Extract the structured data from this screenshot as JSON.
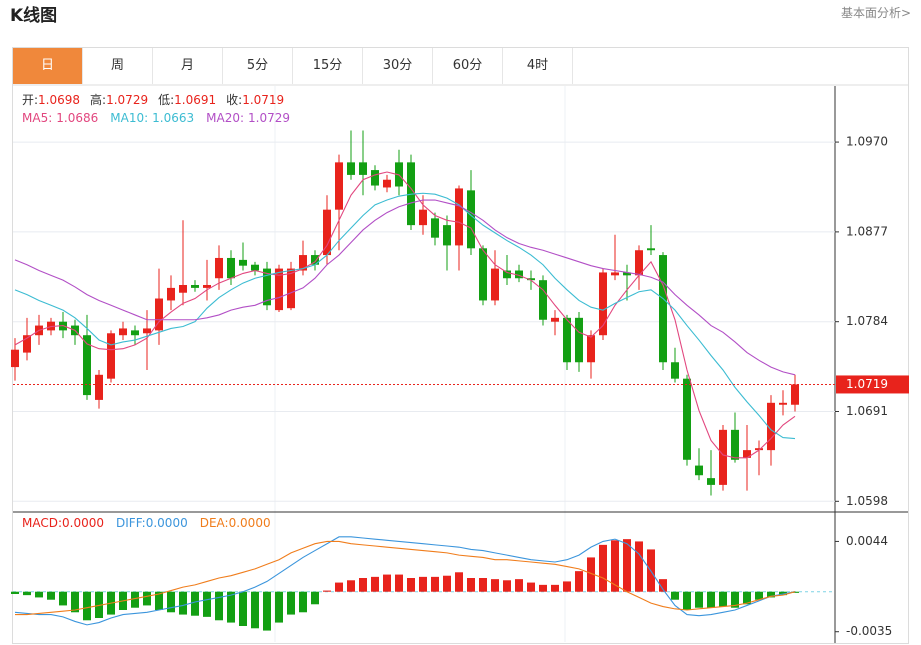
{
  "header": {
    "title": "K线图",
    "link": "基本面分析>"
  },
  "tabs": {
    "items": [
      "日",
      "周",
      "月",
      "5分",
      "15分",
      "30分",
      "60分",
      "4时"
    ],
    "active": 0
  },
  "chart_data": [
    {
      "type": "candlestick",
      "up_color": "#e8231c",
      "down_color": "#139f13",
      "ohlc_labels": {
        "open": "开:",
        "high": "高:",
        "low": "低:",
        "close": "收:"
      },
      "open": [
        1.0737,
        1.0752,
        1.077,
        1.0775,
        1.0784,
        1.078,
        1.077,
        1.0703,
        1.0725,
        1.077,
        1.0775,
        1.0772,
        1.0775,
        1.0806,
        1.0814,
        1.0822,
        1.0819,
        1.0829,
        1.085,
        1.0848,
        1.0843,
        1.0839,
        1.0796,
        1.0798,
        1.0837,
        1.0853,
        1.0853,
        1.09,
        1.0949,
        1.0949,
        1.0941,
        1.0923,
        1.0949,
        1.0949,
        1.0884,
        1.0891,
        1.0884,
        1.0863,
        1.092,
        1.086,
        1.0806,
        1.0837,
        1.0837,
        1.0829,
        1.0827,
        1.0784,
        1.0788,
        1.0788,
        1.0742,
        1.077,
        1.0832,
        1.0835,
        1.0832,
        1.086,
        1.0853,
        1.0742,
        1.0725,
        1.0635,
        1.0622,
        1.0615,
        1.0672,
        1.0643,
        1.0651,
        1.0651,
        1.0698,
        1.0698
      ],
      "high": [
        1.0767,
        1.0788,
        1.0791,
        1.0788,
        1.0794,
        1.0786,
        1.0791,
        1.0734,
        1.0775,
        1.0784,
        1.078,
        1.0796,
        1.0839,
        1.0832,
        1.0889,
        1.0827,
        1.0848,
        1.0863,
        1.0858,
        1.0866,
        1.0846,
        1.0846,
        1.0843,
        1.0846,
        1.0868,
        1.0858,
        1.0915,
        1.0957,
        1.0982,
        1.0982,
        1.0946,
        1.0936,
        1.0962,
        1.0957,
        1.0915,
        1.0897,
        1.0894,
        1.0925,
        1.0941,
        1.0863,
        1.0858,
        1.0853,
        1.0843,
        1.0837,
        1.0832,
        1.0796,
        1.0791,
        1.0794,
        1.0775,
        1.0839,
        1.0874,
        1.0843,
        1.0863,
        1.0884,
        1.0856,
        1.0757,
        1.0729,
        1.0653,
        1.0651,
        1.0677,
        1.069,
        1.0677,
        1.0661,
        1.0708,
        1.0713,
        1.0729
      ],
      "low": [
        1.0723,
        1.0744,
        1.076,
        1.077,
        1.0767,
        1.076,
        1.0703,
        1.0694,
        1.0721,
        1.0765,
        1.076,
        1.0734,
        1.076,
        1.0796,
        1.0801,
        1.0815,
        1.0806,
        1.0817,
        1.0822,
        1.0837,
        1.0832,
        1.0796,
        1.0794,
        1.0796,
        1.0832,
        1.0837,
        1.0843,
        1.0858,
        1.0931,
        1.0915,
        1.092,
        1.0918,
        1.0915,
        1.0879,
        1.0874,
        1.0863,
        1.0837,
        1.0837,
        1.0853,
        1.0801,
        1.0801,
        1.0822,
        1.0825,
        1.0817,
        1.078,
        1.077,
        1.0734,
        1.0732,
        1.0725,
        1.0765,
        1.0827,
        1.0806,
        1.0817,
        1.0853,
        1.0734,
        1.0721,
        1.0635,
        1.062,
        1.0604,
        1.0609,
        1.0638,
        1.0609,
        1.0625,
        1.0635,
        1.0687,
        1.0691
      ],
      "close": [
        1.0755,
        1.077,
        1.078,
        1.0784,
        1.0775,
        1.077,
        1.0708,
        1.0729,
        1.0772,
        1.0777,
        1.077,
        1.0777,
        1.0808,
        1.0819,
        1.0822,
        1.0819,
        1.0822,
        1.085,
        1.0829,
        1.0842,
        1.0837,
        1.0801,
        1.0839,
        1.0839,
        1.0853,
        1.0843,
        1.09,
        1.0949,
        1.0936,
        1.0936,
        1.0925,
        1.0931,
        1.0924,
        1.0884,
        1.09,
        1.0871,
        1.0863,
        1.0922,
        1.086,
        1.0806,
        1.0839,
        1.0829,
        1.0829,
        1.0827,
        1.0786,
        1.0788,
        1.0742,
        1.0742,
        1.077,
        1.0835,
        1.0835,
        1.0832,
        1.0858,
        1.0858,
        1.0742,
        1.0725,
        1.0641,
        1.0625,
        1.0615,
        1.0672,
        1.0641,
        1.0651,
        1.0653,
        1.07,
        1.07,
        1.0719
      ],
      "series": [
        {
          "name": "MA5:",
          "color": "#e2477f",
          "values": [
            1.076,
            1.0767,
            1.0775,
            1.0779,
            1.078,
            1.0775,
            1.0761,
            1.0756,
            1.0755,
            1.0756,
            1.076,
            1.0767,
            1.0784,
            1.0794,
            1.0803,
            1.0808,
            1.0817,
            1.0824,
            1.0829,
            1.0834,
            1.0837,
            1.0834,
            1.0832,
            1.0834,
            1.0839,
            1.0846,
            1.0863,
            1.0889,
            1.0915,
            1.0931,
            1.0936,
            1.0939,
            1.0936,
            1.0922,
            1.0905,
            1.0894,
            1.0889,
            1.0887,
            1.0881,
            1.0858,
            1.0843,
            1.0835,
            1.0832,
            1.0827,
            1.0817,
            1.0801,
            1.0786,
            1.0773,
            1.0768,
            1.078,
            1.0801,
            1.0817,
            1.0832,
            1.0846,
            1.0822,
            1.0786,
            1.0734,
            1.0692,
            1.0661,
            1.0646,
            1.0643,
            1.0643,
            1.0651,
            1.0663,
            1.0677,
            1.0686
          ]
        },
        {
          "name": "MA10:",
          "color": "#3cbcd2",
          "values": [
            1.0817,
            1.0812,
            1.0806,
            1.0801,
            1.0796,
            1.0788,
            1.0777,
            1.0765,
            1.076,
            1.0763,
            1.0765,
            1.0769,
            1.0773,
            1.0777,
            1.0779,
            1.0784,
            1.0798,
            1.0809,
            1.0817,
            1.0824,
            1.0829,
            1.0832,
            1.0835,
            1.0837,
            1.0839,
            1.0843,
            1.0853,
            1.0868,
            1.0881,
            1.0894,
            1.0905,
            1.091,
            1.0914,
            1.0916,
            1.0917,
            1.0916,
            1.0912,
            1.0905,
            1.0894,
            1.0884,
            1.0876,
            1.0868,
            1.0861,
            1.0853,
            1.0843,
            1.0829,
            1.0817,
            1.0806,
            1.0799,
            1.0796,
            1.0803,
            1.0809,
            1.0815,
            1.0817,
            1.0808,
            1.0796,
            1.078,
            1.0765,
            1.0749,
            1.0734,
            1.0716,
            1.0701,
            1.0687,
            1.0672,
            1.0664,
            1.0663
          ]
        },
        {
          "name": "MA20:",
          "color": "#b24fc6",
          "values": [
            1.0848,
            1.0843,
            1.0837,
            1.0832,
            1.0827,
            1.082,
            1.0812,
            1.0806,
            1.0801,
            1.0796,
            1.0791,
            1.0786,
            1.0786,
            1.0786,
            1.0786,
            1.0786,
            1.0788,
            1.0791,
            1.0796,
            1.0799,
            1.0801,
            1.0806,
            1.0809,
            1.0814,
            1.0819,
            1.0829,
            1.0843,
            1.0853,
            1.0866,
            1.0879,
            1.0889,
            1.0897,
            1.0903,
            1.0907,
            1.091,
            1.091,
            1.0907,
            1.0904,
            1.0897,
            1.0889,
            1.0879,
            1.0871,
            1.0865,
            1.0861,
            1.0858,
            1.0854,
            1.085,
            1.0846,
            1.0842,
            1.0839,
            1.0837,
            1.0835,
            1.0833,
            1.083,
            1.0825,
            1.0812,
            1.0801,
            1.0791,
            1.078,
            1.0773,
            1.0763,
            1.0752,
            1.0744,
            1.0737,
            1.0732,
            1.0729
          ]
        }
      ],
      "ylim": [
        1.0589,
        1.1026
      ],
      "yticks": [
        {
          "value": 1.097,
          "label": "1.0970"
        },
        1.0877,
        1.0784,
        1.0691,
        1.0598
      ],
      "grid": true
    },
    {
      "type": "macd",
      "histogram": {
        "name": "MACD:",
        "up_color": "#e8231c",
        "down_color": "#139f13",
        "legend_value": {
          "value": 0,
          "label": "0.0000"
        },
        "values": [
          -0.0002,
          -0.0003,
          -0.0005,
          -0.0007,
          -0.0012,
          -0.0018,
          -0.0025,
          -0.0023,
          -0.002,
          -0.0016,
          -0.0014,
          -0.0012,
          -0.0016,
          -0.0018,
          -0.002,
          -0.0021,
          -0.0022,
          -0.0025,
          -0.0027,
          -0.003,
          -0.0032,
          -0.0034,
          -0.0027,
          -0.002,
          -0.0018,
          -0.0011,
          0.0001,
          0.0008,
          0.001,
          0.0012,
          0.0013,
          0.0015,
          0.0015,
          0.0012,
          0.0013,
          0.0013,
          0.0014,
          0.0017,
          0.0012,
          0.0012,
          0.0011,
          0.001,
          0.0011,
          0.0008,
          0.0006,
          0.0006,
          0.0009,
          0.0018,
          0.003,
          0.0041,
          0.0045,
          0.0046,
          0.0044,
          0.0037,
          0.0011,
          -0.0007,
          -0.0016,
          -0.0014,
          -0.0014,
          -0.0013,
          -0.0014,
          -0.0011,
          -0.0007,
          -0.0005,
          -0.0003,
          -0.0001
        ]
      },
      "series": [
        {
          "name": "DIFF:",
          "color": "#3b95dc",
          "legend_value": {
            "value": 0,
            "label": "0.0000"
          },
          "values": [
            -0.0018,
            -0.0019,
            -0.002,
            -0.002,
            -0.0022,
            -0.0026,
            -0.0029,
            -0.0027,
            -0.0023,
            -0.002,
            -0.0019,
            -0.0018,
            -0.0016,
            -0.0014,
            -0.0012,
            -0.0009,
            -0.0007,
            -0.0005,
            -0.0003,
            0,
            0.0004,
            0.0009,
            0.0016,
            0.0023,
            0.003,
            0.0036,
            0.0042,
            0.0048,
            0.0048,
            0.0047,
            0.0046,
            0.0045,
            0.0044,
            0.0043,
            0.0042,
            0.0041,
            0.004,
            0.0039,
            0.0037,
            0.0036,
            0.0034,
            0.0032,
            0.003,
            0.0028,
            0.0027,
            0.0026,
            0.0028,
            0.0032,
            0.0039,
            0.0044,
            0.0046,
            0.0042,
            0.0033,
            0.0018,
            0.0002,
            -0.0012,
            -0.002,
            -0.0021,
            -0.002,
            -0.0018,
            -0.0016,
            -0.0012,
            -0.0008,
            -0.0004,
            -0.0002,
            0
          ]
        },
        {
          "name": "DEA:",
          "color": "#f07d1c",
          "legend_value": {
            "value": 0,
            "label": "0.0000"
          },
          "values": [
            -0.002,
            -0.002,
            -0.0019,
            -0.0018,
            -0.0017,
            -0.0016,
            -0.0014,
            -0.0012,
            -0.001,
            -0.0008,
            -0.0006,
            -0.0004,
            -0.0002,
            0.0001,
            0.0004,
            0.0006,
            0.0009,
            0.0012,
            0.0014,
            0.0017,
            0.002,
            0.0024,
            0.0028,
            0.0034,
            0.0038,
            0.0042,
            0.0044,
            0.0044,
            0.0042,
            0.0041,
            0.004,
            0.0039,
            0.0038,
            0.0037,
            0.0036,
            0.0035,
            0.0034,
            0.0032,
            0.0031,
            0.003,
            0.0028,
            0.0028,
            0.0027,
            0.0026,
            0.0025,
            0.0024,
            0.0022,
            0.002,
            0.0016,
            0.0012,
            0.0006,
            0,
            -0.0005,
            -0.001,
            -0.0013,
            -0.0015,
            -0.0016,
            -0.0015,
            -0.0014,
            -0.0013,
            -0.0012,
            -0.001,
            -0.0007,
            -0.0004,
            -0.0003,
            0
          ]
        }
      ],
      "ylim": [
        -0.0044,
        0.0068
      ],
      "yticks": [
        0.0044,
        -0.0035
      ]
    }
  ]
}
